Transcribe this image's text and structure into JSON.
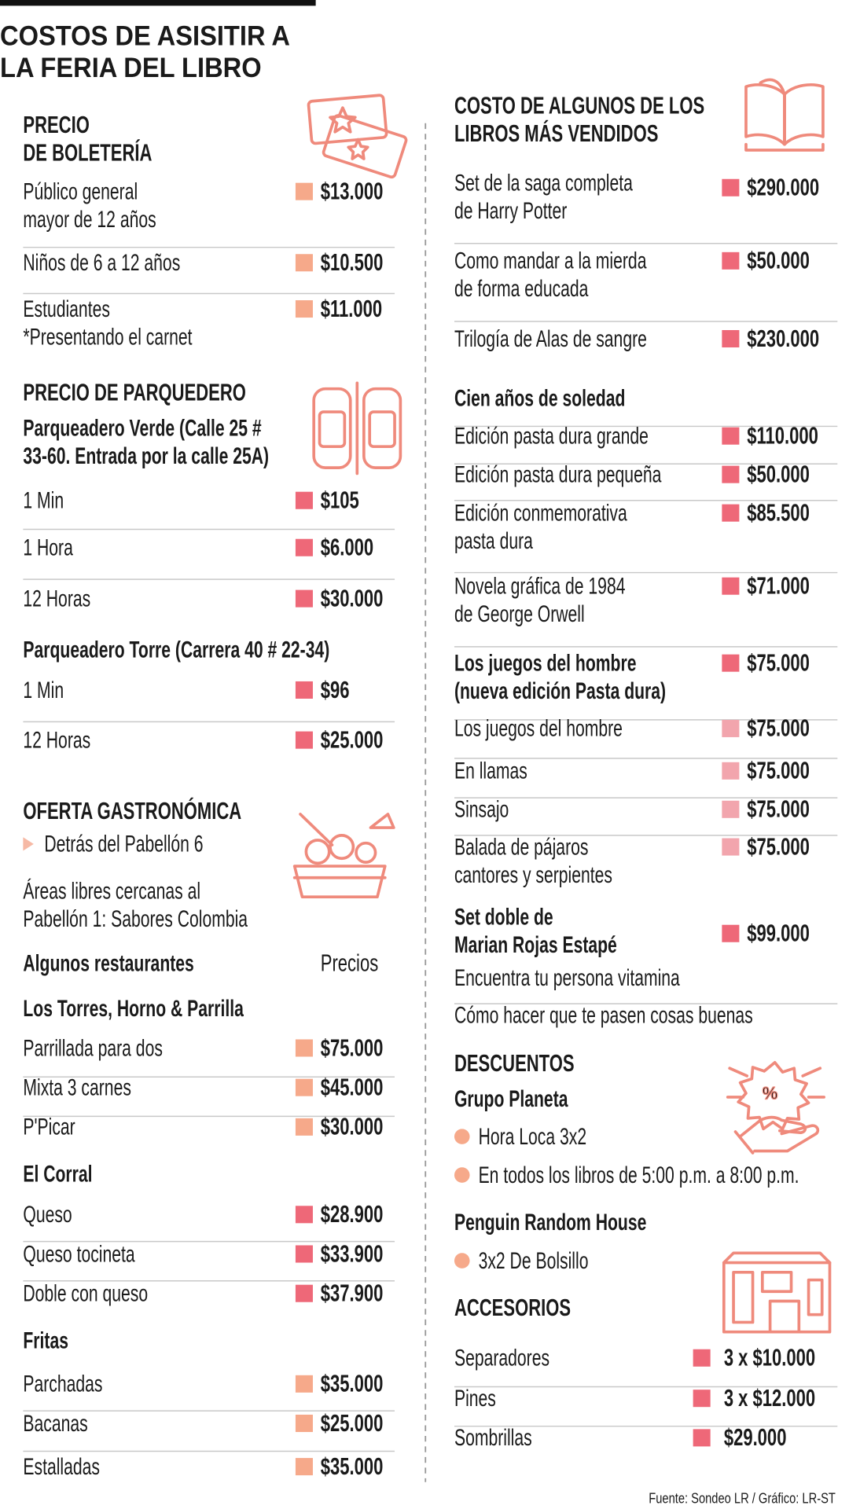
{
  "title": [
    "COSTOS DE ASISITIR A",
    "LA FERIA DEL LIBRO"
  ],
  "left": [
    {
      "kind": "heading",
      "lines": [
        "PRECIO",
        "DE BOLETERÍA"
      ]
    },
    {
      "kind": "row",
      "lines": [
        "Público general",
        "mayor de 12 años"
      ],
      "price": "$13.000",
      "swatch": "#f6a98a"
    },
    {
      "kind": "row",
      "lines": [
        "Niños de 6 a 12 años"
      ],
      "price": "$10.500",
      "swatch": "#f6a98a"
    },
    {
      "kind": "row",
      "lines": [
        "Estudiantes",
        "*Presentando el carnet"
      ],
      "price": "$11.000",
      "swatch": "#f6a98a"
    },
    {
      "kind": "heading",
      "lines": [
        "PRECIO DE PARQUEDERO"
      ]
    },
    {
      "kind": "sub",
      "lines": [
        "Parqueadero Verde (Calle 25 #",
        "33-60. Entrada por la calle 25A)"
      ]
    },
    {
      "kind": "row",
      "lines": [
        "1 Min"
      ],
      "price": "$105",
      "swatch": "#ee6878"
    },
    {
      "kind": "row",
      "lines": [
        "1 Hora"
      ],
      "price": "$6.000",
      "swatch": "#ee6878"
    },
    {
      "kind": "row",
      "lines": [
        "12 Horas"
      ],
      "price": "$30.000",
      "swatch": "#ee6878"
    },
    {
      "kind": "sub",
      "lines": [
        "Parqueadero Torre (Carrera 40 # 22-34)"
      ]
    },
    {
      "kind": "row",
      "lines": [
        "1 Min"
      ],
      "price": "$96",
      "swatch": "#ee6878"
    },
    {
      "kind": "row",
      "lines": [
        "12 Horas"
      ],
      "price": "$25.000",
      "swatch": "#ee6878"
    },
    {
      "kind": "heading",
      "lines": [
        "OFERTA GASTRONÓMICA"
      ]
    },
    {
      "kind": "bullet-tri",
      "lines": [
        "Detrás del Pabellón 6"
      ],
      "bullet": "#f6b9a5"
    },
    {
      "kind": "text",
      "lines": [
        "Áreas libres cercanas al",
        "Pabellón 1: Sabores Colombia"
      ]
    },
    {
      "kind": "sub",
      "lines": [
        "Algunos restaurantes"
      ],
      "price": "Precios"
    },
    {
      "kind": "sub",
      "lines": [
        "Los Torres, Horno & Parrilla"
      ]
    },
    {
      "kind": "row",
      "lines": [
        "Parrillada para dos"
      ],
      "price": "$75.000",
      "swatch": "#f6a98a"
    },
    {
      "kind": "row",
      "lines": [
        "Mixta 3 carnes"
      ],
      "price": "$45.000",
      "swatch": "#f6a98a"
    },
    {
      "kind": "row",
      "lines": [
        "P'Picar"
      ],
      "price": "$30.000",
      "swatch": "#f6a98a"
    },
    {
      "kind": "sub",
      "lines": [
        "El Corral"
      ]
    },
    {
      "kind": "row",
      "lines": [
        "Queso"
      ],
      "price": "$28.900",
      "swatch": "#ee6878"
    },
    {
      "kind": "row",
      "lines": [
        "Queso tocineta"
      ],
      "price": "$33.900",
      "swatch": "#ee6878"
    },
    {
      "kind": "row",
      "lines": [
        "Doble con queso"
      ],
      "price": "$37.900",
      "swatch": "#ee6878"
    },
    {
      "kind": "sub",
      "lines": [
        "Fritas"
      ]
    },
    {
      "kind": "row",
      "lines": [
        "Parchadas"
      ],
      "price": "$35.000",
      "swatch": "#f6a98a"
    },
    {
      "kind": "row",
      "lines": [
        "Bacanas"
      ],
      "price": "$25.000",
      "swatch": "#f6a98a"
    },
    {
      "kind": "row",
      "lines": [
        "Estalladas"
      ],
      "price": "$35.000",
      "swatch": "#f6a98a"
    }
  ],
  "right": [
    {
      "kind": "heading",
      "lines": [
        "COSTO DE ALGUNOS DE LOS",
        "LIBROS MÁS VENDIDOS"
      ]
    },
    {
      "kind": "row",
      "lines": [
        "Set de la saga completa",
        "de Harry Potter"
      ],
      "price": "$290.000",
      "swatch": "#ee6878"
    },
    {
      "kind": "row",
      "lines": [
        "Como mandar a la mierda",
        "de forma educada"
      ],
      "price": "$50.000",
      "swatch": "#ee6878"
    },
    {
      "kind": "row",
      "lines": [
        "Trilogía de Alas de sangre"
      ],
      "price": "$230.000",
      "swatch": "#ee6878"
    },
    {
      "kind": "sub",
      "lines": [
        "Cien años de soledad"
      ]
    },
    {
      "kind": "row",
      "lines": [
        "Edición pasta dura grande"
      ],
      "price": "$110.000",
      "swatch": "#ee6878"
    },
    {
      "kind": "row",
      "lines": [
        "Edición pasta dura pequeña"
      ],
      "price": "$50.000",
      "swatch": "#ee6878"
    },
    {
      "kind": "row",
      "lines": [
        "Edición conmemorativa",
        "pasta dura"
      ],
      "price": "$85.500",
      "swatch": "#ee6878"
    },
    {
      "kind": "row",
      "lines": [
        "Novela gráfica de 1984",
        "de George Orwell"
      ],
      "price": "$71.000",
      "swatch": "#ee6878"
    },
    {
      "kind": "sub",
      "lines": [
        "Los juegos del hombre",
        "(nueva edición Pasta dura)"
      ],
      "price": "$75.000",
      "swatch": "#ee6878"
    },
    {
      "kind": "row",
      "lines": [
        "Los juegos del hombre"
      ],
      "price": "$75.000",
      "swatch": "#f2a5ad"
    },
    {
      "kind": "row",
      "lines": [
        "En llamas"
      ],
      "price": "$75.000",
      "swatch": "#f2a5ad"
    },
    {
      "kind": "row",
      "lines": [
        "Sinsajo"
      ],
      "price": "$75.000",
      "swatch": "#f2a5ad"
    },
    {
      "kind": "row",
      "lines": [
        "Balada de pájaros",
        "cantores y serpientes"
      ],
      "price": "$75.000",
      "swatch": "#f2a5ad"
    },
    {
      "kind": "sub",
      "lines": [
        "Set doble de",
        "Marian Rojas Estapé"
      ],
      "price": "$99.000",
      "swatch": "#ee6878"
    },
    {
      "kind": "text",
      "lines": [
        "Encuentra tu persona vitamina"
      ]
    },
    {
      "kind": "text",
      "lines": [
        "Cómo hacer que te pasen cosas buenas"
      ]
    },
    {
      "kind": "heading",
      "lines": [
        "DESCUENTOS"
      ]
    },
    {
      "kind": "sub",
      "lines": [
        "Grupo Planeta"
      ]
    },
    {
      "kind": "bullet-dot",
      "lines": [
        "Hora Loca 3x2"
      ],
      "bullet": "#f6a98a"
    },
    {
      "kind": "bullet-dot",
      "lines": [
        "En todos los libros de 5:00 p.m. a 8:00 p.m."
      ],
      "bullet": "#f6a98a"
    },
    {
      "kind": "sub",
      "lines": [
        "Penguin Random House"
      ]
    },
    {
      "kind": "bullet-dot",
      "lines": [
        "3x2 De Bolsillo"
      ],
      "bullet": "#f6a98a"
    },
    {
      "kind": "heading",
      "lines": [
        "ACCESORIOS"
      ]
    },
    {
      "kind": "row",
      "lines": [
        "Separadores"
      ],
      "price": "3 x $10.000",
      "swatch": "#ee6878"
    },
    {
      "kind": "row",
      "lines": [
        "Pines"
      ],
      "price": "3 x $12.000",
      "swatch": "#ee6878"
    },
    {
      "kind": "row",
      "lines": [
        "Sombrillas"
      ],
      "price": "$29.000",
      "swatch": "#ee6878"
    }
  ],
  "source": "Fuente: Sondeo LR / Gráfico: LR-ST"
}
